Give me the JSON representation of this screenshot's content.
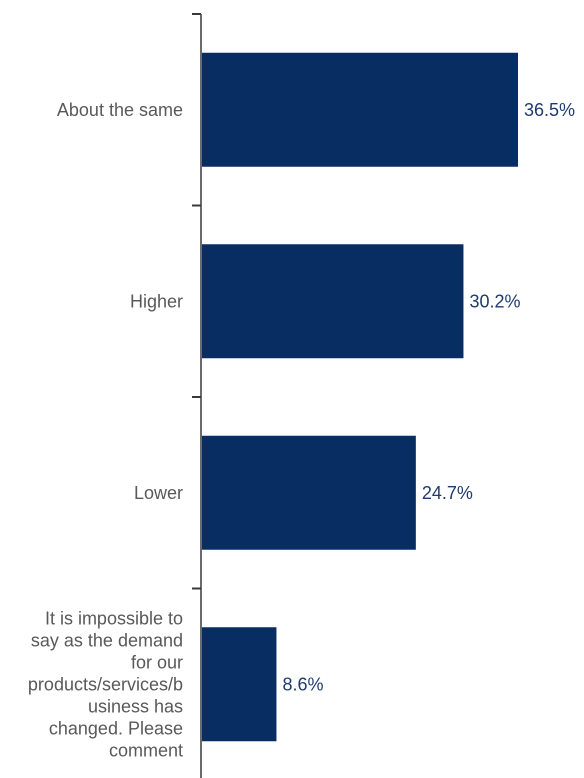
{
  "chart_data": {
    "type": "bar",
    "orientation": "horizontal",
    "categories": [
      "About the same",
      "Higher",
      "Lower",
      "It is impossible to say as the demand for our products/services/business has changed. Please comment"
    ],
    "category_label_lines": [
      [
        "About the same"
      ],
      [
        "Higher"
      ],
      [
        "Lower"
      ],
      [
        "It is impossible to",
        "say as the demand",
        "for our",
        "products/services/b",
        "usiness has",
        "changed. Please",
        "comment"
      ]
    ],
    "values": [
      36.5,
      30.2,
      24.7,
      8.6
    ],
    "data_labels": [
      "36.5%",
      "30.2%",
      "24.7%",
      "8.6%"
    ],
    "title": "",
    "xlabel": "",
    "ylabel": "",
    "xlim": [
      0,
      40
    ],
    "grid": false,
    "legend": "none",
    "colors": {
      "bar": "#082d63",
      "data_label": "#1f3b6e",
      "category_label": "#595959",
      "axis": "#3a3a3a"
    }
  }
}
